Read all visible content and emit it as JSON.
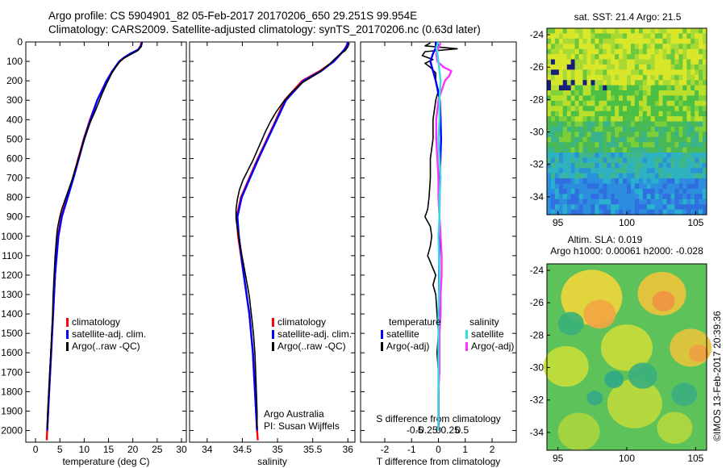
{
  "header": {
    "line1": "Argo profile: CS 5904901_82 05-Feb-2017 20170206_650 29.251S 99.954E",
    "line2": "Climatology: CARS2009. Satellite-adjusted climatology: synTS_20170206.nc (0.63d later)"
  },
  "footer_stamp": "©IMOS 13-Feb-2017 20:39:36",
  "colors": {
    "climatology": "#ff0000",
    "satellite": "#0000ff",
    "argo": "#000000",
    "sal_satellite": "#33dddd",
    "sal_argo": "#ff33ff"
  },
  "chart_data": [
    {
      "id": "temperature",
      "type": "line",
      "xlabel": "temperature (deg C)",
      "ylabel": "",
      "xlim": [
        -2,
        31
      ],
      "ylim": [
        2060,
        0
      ],
      "xticks": [
        "0",
        "5",
        "10",
        "15",
        "20",
        "25",
        "30"
      ],
      "yticks": [
        "0",
        "100",
        "200",
        "300",
        "400",
        "500",
        "600",
        "700",
        "800",
        "900",
        "1000",
        "1100",
        "1200",
        "1300",
        "1400",
        "1500",
        "1600",
        "1700",
        "1800",
        "1900",
        "2000"
      ],
      "legend": [
        "climatology",
        "satellite-adj. clim.",
        "Argo(..raw -QC)"
      ],
      "series": [
        {
          "name": "climatology",
          "color": "#ff0000",
          "depth": [
            0,
            20,
            40,
            60,
            80,
            100,
            150,
            200,
            300,
            400,
            500,
            600,
            700,
            800,
            900,
            1000,
            1200,
            1400,
            1600,
            1800,
            2000,
            2050
          ],
          "values": [
            21.8,
            21.6,
            21.1,
            19.6,
            18.3,
            17.3,
            15.8,
            14.6,
            12.7,
            11.2,
            9.9,
            8.8,
            7.7,
            6.5,
            5.3,
            4.6,
            4.0,
            3.6,
            3.2,
            2.8,
            2.4,
            2.3
          ]
        },
        {
          "name": "satellite-adj. clim.",
          "color": "#0000ff",
          "depth": [
            0,
            20,
            40,
            60,
            80,
            100,
            150,
            200,
            300,
            400,
            500,
            600,
            700,
            800,
            900,
            1000,
            1200,
            1400,
            1600,
            1800,
            2000
          ],
          "values": [
            21.9,
            21.7,
            21.1,
            19.5,
            18.2,
            17.2,
            15.8,
            14.6,
            12.7,
            11.3,
            10.0,
            8.9,
            7.8,
            6.6,
            5.4,
            4.7,
            4.0,
            3.6,
            3.2,
            2.8,
            2.4
          ]
        },
        {
          "name": "Argo(..raw -QC)",
          "color": "#000000",
          "depth": [
            5,
            25,
            45,
            65,
            85,
            110,
            160,
            210,
            260,
            310,
            360,
            410,
            460,
            510,
            560,
            610,
            660,
            710,
            760,
            810,
            860,
            910,
            960,
            1010,
            1110,
            1210,
            1310,
            1410,
            1510,
            1610,
            1710,
            1810,
            1910,
            1990
          ],
          "values": [
            21.9,
            21.7,
            21.0,
            19.5,
            18.0,
            17.0,
            15.7,
            14.7,
            13.8,
            13.0,
            12.2,
            11.3,
            10.6,
            9.9,
            9.3,
            8.7,
            8.1,
            7.5,
            6.8,
            6.1,
            5.4,
            4.9,
            4.5,
            4.3,
            4.0,
            3.8,
            3.6,
            3.5,
            3.3,
            3.1,
            2.9,
            2.7,
            2.5,
            2.4
          ]
        }
      ]
    },
    {
      "id": "salinity",
      "type": "line",
      "xlabel": "salinity",
      "ylabel": "",
      "xlim": [
        33.75,
        36.1
      ],
      "ylim": [
        2060,
        0
      ],
      "xticks": [
        "34",
        "34.5",
        "35",
        "35.5",
        "36"
      ],
      "legend": [
        "climatology",
        "satellite-adj. clim.",
        "Argo(..raw -QC)"
      ],
      "annotations": [
        "Argo Australia",
        "PI: Susan Wijffels"
      ],
      "series": [
        {
          "name": "climatology",
          "color": "#ff0000",
          "depth": [
            0,
            20,
            40,
            60,
            80,
            100,
            150,
            200,
            300,
            400,
            500,
            600,
            700,
            800,
            900,
            1000,
            1200,
            1400,
            1600,
            1800,
            2000,
            2050
          ],
          "values": [
            36.0,
            35.98,
            35.95,
            35.9,
            35.85,
            35.8,
            35.6,
            35.35,
            35.1,
            34.98,
            34.85,
            34.72,
            34.6,
            34.48,
            34.42,
            34.44,
            34.52,
            34.6,
            34.65,
            34.68,
            34.71,
            34.72
          ]
        },
        {
          "name": "satellite-adj. clim.",
          "color": "#0000ff",
          "depth": [
            0,
            20,
            40,
            60,
            80,
            100,
            150,
            200,
            300,
            400,
            500,
            600,
            700,
            800,
            900,
            1000,
            1200,
            1400,
            1600,
            1800,
            2000
          ],
          "values": [
            36.0,
            35.99,
            35.95,
            35.9,
            35.85,
            35.8,
            35.62,
            35.37,
            35.12,
            34.99,
            34.86,
            34.73,
            34.61,
            34.49,
            34.43,
            34.45,
            34.52,
            34.6,
            34.65,
            34.68,
            34.71
          ]
        },
        {
          "name": "Argo(..raw -QC)",
          "color": "#000000",
          "depth": [
            5,
            25,
            45,
            65,
            85,
            110,
            160,
            210,
            260,
            310,
            360,
            410,
            460,
            510,
            560,
            610,
            660,
            710,
            760,
            810,
            860,
            910,
            960,
            1010,
            1110,
            1210,
            1310,
            1410,
            1510,
            1610,
            1710,
            1810,
            1910,
            1990
          ],
          "values": [
            36.02,
            36.0,
            35.96,
            35.88,
            35.82,
            35.75,
            35.58,
            35.35,
            35.2,
            35.08,
            34.98,
            34.9,
            34.83,
            34.77,
            34.71,
            34.65,
            34.58,
            34.51,
            34.46,
            34.43,
            34.41,
            34.41,
            34.43,
            34.45,
            34.5,
            34.55,
            34.6,
            34.63,
            34.66,
            34.68,
            34.69,
            34.7,
            34.71,
            34.71
          ]
        }
      ]
    },
    {
      "id": "difference",
      "type": "line",
      "xlabel": "T difference from climatology",
      "xlabel_top": "S difference from climatology",
      "xlim": [
        -2.9,
        2.9
      ],
      "ylim": [
        2060,
        0
      ],
      "xticks": [
        "-2",
        "-1",
        "0",
        "1",
        "2"
      ],
      "sticks": [
        "-0.5",
        "-0.25",
        "0",
        "0.25",
        "0.5"
      ],
      "legend_titles": [
        "temperature",
        "salinity"
      ],
      "legend": [
        "satellite",
        "Argo(-adj)",
        "satellite",
        "Argo(-adj)"
      ],
      "series": [
        {
          "name": "T satellite",
          "color": "#0000ff",
          "depth": [
            0,
            30,
            60,
            100,
            150,
            200,
            300,
            400,
            500,
            700,
            900,
            1100,
            1300,
            1500,
            1700,
            1900,
            2000
          ],
          "values": [
            -0.1,
            -0.1,
            -0.2,
            -0.3,
            -0.2,
            -0.1,
            0.05,
            0.08,
            0.1,
            0.05,
            0.04,
            0.03,
            0.02,
            0.02,
            0.01,
            0.01,
            0.01
          ]
        },
        {
          "name": "T Argo(-adj)",
          "color": "#000000",
          "depth": [
            5,
            20,
            35,
            50,
            70,
            90,
            110,
            130,
            160,
            200,
            250,
            300,
            400,
            500,
            600,
            700,
            800,
            860,
            900,
            950,
            1000,
            1050,
            1100,
            1150,
            1200,
            1250,
            1300,
            1400,
            1500,
            1600,
            1700,
            1800,
            1900,
            1990
          ],
          "values": [
            -0.3,
            -0.5,
            0.7,
            -0.5,
            -0.6,
            -0.2,
            -0.5,
            -0.3,
            -0.1,
            -0.1,
            0.0,
            -0.1,
            -0.2,
            -0.2,
            -0.3,
            -0.3,
            -0.35,
            -0.4,
            -0.5,
            -0.3,
            -0.25,
            -0.3,
            -0.4,
            -0.25,
            -0.1,
            -0.2,
            -0.1,
            -0.05,
            0.0,
            -0.05,
            0.0,
            0.0,
            0.0,
            0.0
          ]
        },
        {
          "name": "S satellite",
          "color": "#33dddd",
          "depth": [
            0,
            30,
            60,
            100,
            150,
            200,
            300,
            400,
            500,
            600,
            700,
            800,
            900,
            1000,
            1200,
            1400,
            1600,
            1800,
            2000
          ],
          "values": [
            0.0,
            -0.02,
            -0.01,
            0.0,
            0.01,
            0.02,
            0.01,
            0.01,
            0.0,
            0.01,
            0.02,
            0.01,
            0.01,
            0.0,
            0.01,
            0.0,
            0.0,
            0.0,
            0.0
          ]
        },
        {
          "name": "S Argo(-adj)",
          "color": "#ff33ff",
          "depth": [
            5,
            30,
            60,
            100,
            130,
            150,
            175,
            200,
            250,
            300,
            400,
            500,
            600,
            700,
            800,
            900,
            1000,
            1100,
            1200,
            1300,
            1400,
            1500,
            1600,
            1700,
            1800,
            1900,
            1990
          ],
          "values": [
            0.02,
            0.0,
            -0.02,
            -0.01,
            0.05,
            0.12,
            0.1,
            0.06,
            0.03,
            0.0,
            -0.02,
            -0.02,
            -0.01,
            0.0,
            0.0,
            0.01,
            0.02,
            0.03,
            0.03,
            0.02,
            0.02,
            0.01,
            0.01,
            0.01,
            0.0,
            0.0,
            0.0
          ]
        }
      ]
    },
    {
      "id": "sst-map",
      "type": "heatmap",
      "title": "sat. SST: 21.4 Argo: 21.5",
      "xticks": [
        "95",
        "100",
        "105"
      ],
      "yticks": [
        "-24",
        "-26",
        "-28",
        "-30",
        "-32",
        "-34"
      ],
      "xlim": [
        94.2,
        105.8
      ],
      "ylim": [
        -35.1,
        -23.6
      ]
    },
    {
      "id": "sla-map",
      "type": "heatmap",
      "title": "Altim. SLA: 0.019",
      "subtitle": "Argo h1000: 0.00061 h2000: -0.028",
      "xticks": [
        "95",
        "100",
        "105"
      ],
      "yticks": [
        "-24",
        "-26",
        "-28",
        "-30",
        "-32",
        "-34"
      ],
      "xlim": [
        94.2,
        105.8
      ],
      "ylim": [
        -35.1,
        -23.6
      ]
    }
  ]
}
